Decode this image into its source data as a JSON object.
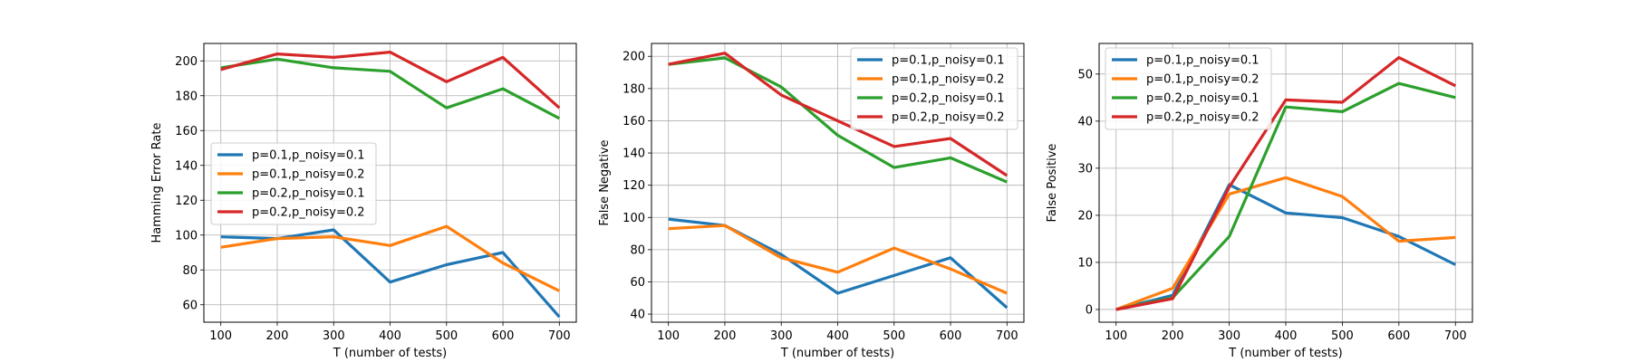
{
  "chart_data": [
    {
      "type": "line",
      "xlabel": "T (number of tests)",
      "ylabel": "Hamming Error Rate",
      "x": [
        100,
        200,
        300,
        400,
        500,
        600,
        700
      ],
      "xticks": [
        100,
        200,
        300,
        400,
        500,
        600,
        700
      ],
      "xlim": [
        70,
        730
      ],
      "ylim": [
        50,
        210
      ],
      "yticks": [
        60,
        80,
        100,
        120,
        140,
        160,
        180,
        200
      ],
      "grid": true,
      "legend_position": "center-left",
      "series": [
        {
          "name": "p=0.1,p_noisy=0.1",
          "color": "#1f77b4",
          "values": [
            99,
            98,
            103,
            73,
            83,
            90,
            53
          ]
        },
        {
          "name": "p=0.1,p_noisy=0.2",
          "color": "#ff7f0e",
          "values": [
            93,
            98,
            99,
            94,
            105,
            84,
            68
          ]
        },
        {
          "name": "p=0.2,p_noisy=0.1",
          "color": "#2ca02c",
          "values": [
            196,
            201,
            196,
            194,
            173,
            184,
            167
          ]
        },
        {
          "name": "p=0.2,p_noisy=0.2",
          "color": "#d62728",
          "values": [
            195,
            204,
            202,
            205,
            188,
            202,
            173
          ]
        }
      ]
    },
    {
      "type": "line",
      "xlabel": "T (number of tests)",
      "ylabel": "False Negative",
      "x": [
        100,
        200,
        300,
        400,
        500,
        600,
        700
      ],
      "xticks": [
        100,
        200,
        300,
        400,
        500,
        600,
        700
      ],
      "xlim": [
        70,
        730
      ],
      "ylim": [
        35,
        208
      ],
      "yticks": [
        40,
        60,
        80,
        100,
        120,
        140,
        160,
        180,
        200
      ],
      "grid": true,
      "legend_position": "top-right",
      "series": [
        {
          "name": "p=0.1,p_noisy=0.1",
          "color": "#1f77b4",
          "values": [
            99,
            95,
            77,
            53,
            64,
            75,
            44
          ]
        },
        {
          "name": "p=0.1,p_noisy=0.2",
          "color": "#ff7f0e",
          "values": [
            93,
            95,
            75,
            66,
            81,
            68,
            53
          ]
        },
        {
          "name": "p=0.2,p_noisy=0.1",
          "color": "#2ca02c",
          "values": [
            195,
            199,
            181,
            151,
            131,
            137,
            122
          ]
        },
        {
          "name": "p=0.2,p_noisy=0.2",
          "color": "#d62728",
          "values": [
            195,
            202,
            176,
            160,
            144,
            149,
            126
          ]
        }
      ]
    },
    {
      "type": "line",
      "xlabel": "T (number of tests)",
      "ylabel": "False Positive",
      "x": [
        100,
        200,
        300,
        400,
        500,
        600,
        700
      ],
      "xticks": [
        100,
        200,
        300,
        400,
        500,
        600,
        700
      ],
      "xlim": [
        70,
        730
      ],
      "ylim": [
        -2.7,
        56.5
      ],
      "yticks": [
        0,
        10,
        20,
        30,
        40,
        50
      ],
      "grid": true,
      "legend_position": "top-left",
      "series": [
        {
          "name": "p=0.1,p_noisy=0.1",
          "color": "#1f77b4",
          "values": [
            0,
            3,
            26.5,
            20.5,
            19.5,
            15.5,
            9.5
          ]
        },
        {
          "name": "p=0.1,p_noisy=0.2",
          "color": "#ff7f0e",
          "values": [
            0,
            4.5,
            24.5,
            28,
            24,
            14.5,
            15.3
          ]
        },
        {
          "name": "p=0.2,p_noisy=0.1",
          "color": "#2ca02c",
          "values": [
            0,
            2.5,
            15.5,
            43,
            42,
            48,
            45
          ]
        },
        {
          "name": "p=0.2,p_noisy=0.2",
          "color": "#d62728",
          "values": [
            0,
            2.3,
            26,
            44.5,
            44,
            53.5,
            47.5
          ]
        }
      ]
    }
  ]
}
